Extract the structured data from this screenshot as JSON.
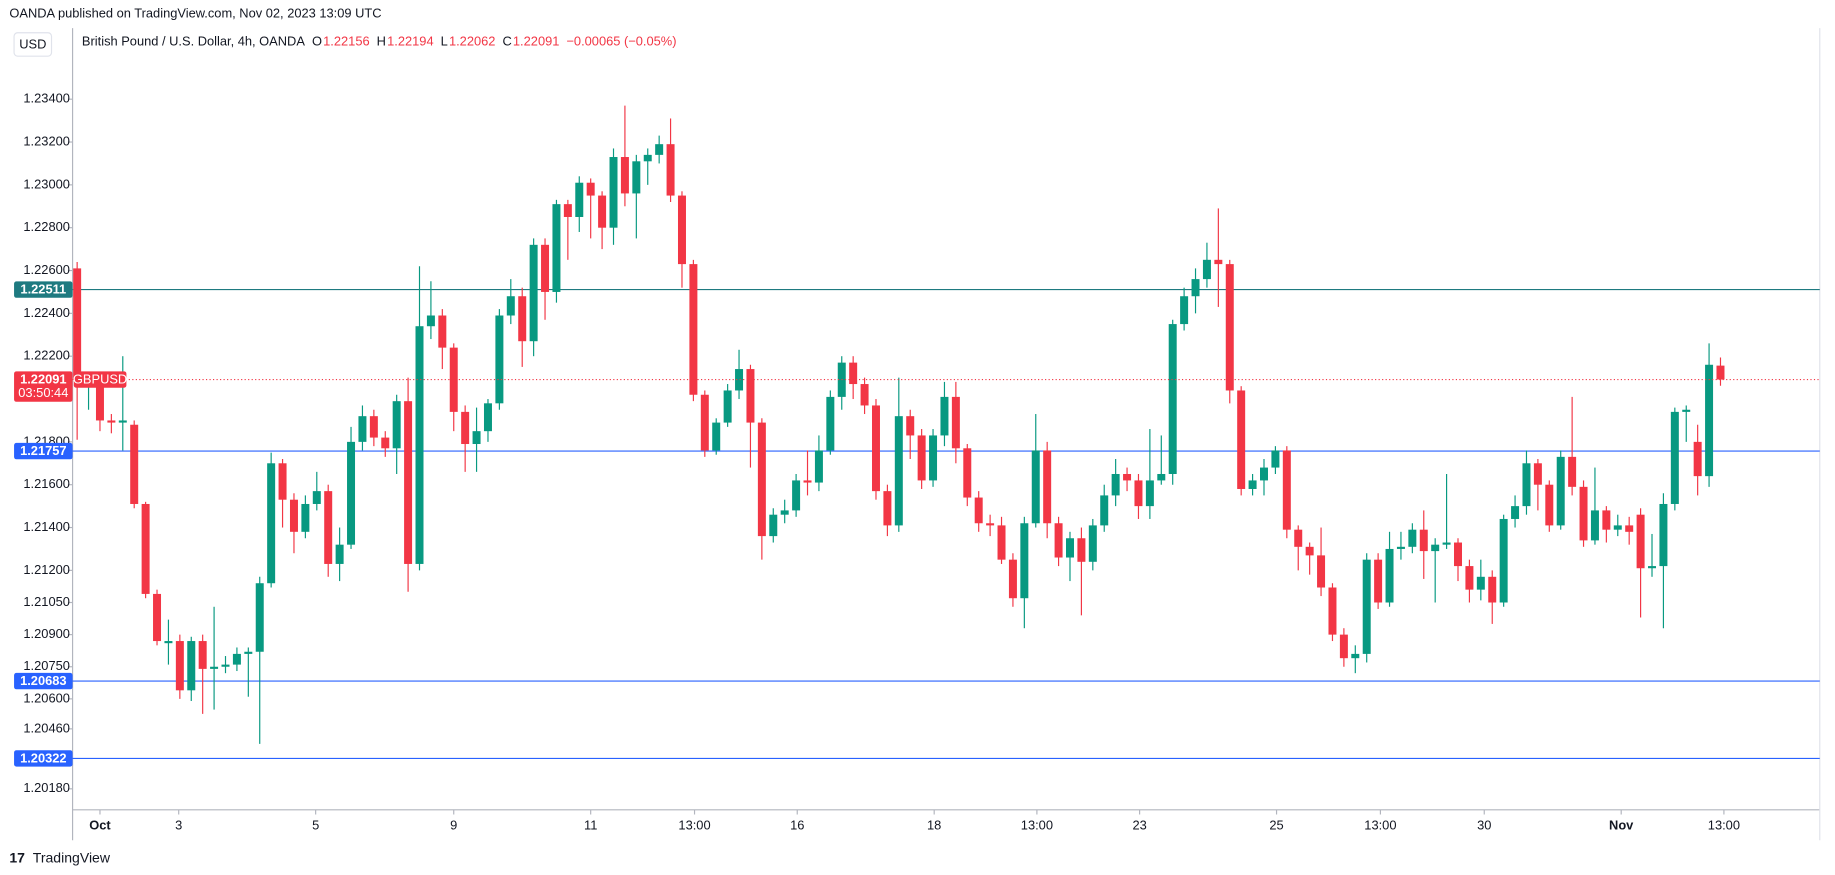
{
  "header": {
    "published": "OANDA published on TradingView.com, Nov 02, 2023 13:09 UTC",
    "currency": "USD",
    "footer": "TradingView"
  },
  "chart_data": {
    "type": "candlestick",
    "title": "British Pound / U.S. Dollar, 4h, OANDA",
    "symbol": "GBPUSD",
    "countdown": "03:50:44",
    "ohlc_letters": [
      "O",
      "H",
      "L",
      "C"
    ],
    "change_label": "−0.00065 (−0.05%)",
    "up_color": "#089981",
    "down_color": "#f23645",
    "ylim": [
      1.20082,
      1.23732
    ],
    "xlim": [
      -0.4,
      152.7
    ],
    "grid": false,
    "yticks": [
      {
        "value": 1.234,
        "label": "1.23400"
      },
      {
        "value": 1.232,
        "label": "1.23200"
      },
      {
        "value": 1.23,
        "label": "1.23000"
      },
      {
        "value": 1.228,
        "label": "1.22800"
      },
      {
        "value": 1.226,
        "label": "1.22600"
      },
      {
        "value": 1.224,
        "label": "1.22400"
      },
      {
        "value": 1.222,
        "label": "1.22200"
      },
      {
        "value": 1.218,
        "label": "1.21800"
      },
      {
        "value": 1.216,
        "label": "1.21600"
      },
      {
        "value": 1.214,
        "label": "1.21400"
      },
      {
        "value": 1.212,
        "label": "1.21200"
      },
      {
        "value": 1.2105,
        "label": "1.21050"
      },
      {
        "value": 1.209,
        "label": "1.20900"
      },
      {
        "value": 1.2075,
        "label": "1.20750"
      },
      {
        "value": 1.206,
        "label": "1.20600"
      },
      {
        "value": 1.2046,
        "label": "1.20460"
      },
      {
        "value": 1.2018,
        "label": "1.20180"
      }
    ],
    "xticks": [
      {
        "value": 2,
        "label": "Oct"
      },
      {
        "value": 8.9,
        "label": "3"
      },
      {
        "value": 20.9,
        "label": "5"
      },
      {
        "value": 33,
        "label": "9"
      },
      {
        "value": 45,
        "label": "11"
      },
      {
        "value": 54.1,
        "label": "13:00"
      },
      {
        "value": 63.1,
        "label": "16"
      },
      {
        "value": 75.1,
        "label": "18"
      },
      {
        "value": 84.1,
        "label": "13:00"
      },
      {
        "value": 93.1,
        "label": "23"
      },
      {
        "value": 105.1,
        "label": "25"
      },
      {
        "value": 114.2,
        "label": "13:00"
      },
      {
        "value": 123.3,
        "label": "30"
      },
      {
        "value": 135.3,
        "label": "Nov"
      },
      {
        "value": 144.3,
        "label": "13:00"
      }
    ],
    "levels": [
      {
        "value": 1.22511,
        "label": "1.22511",
        "color": "#1e7a80"
      },
      {
        "value": 1.21757,
        "label": "1.21757",
        "color": "#2962ff"
      },
      {
        "value": 1.20683,
        "label": "1.20683",
        "color": "#2962ff"
      },
      {
        "value": 1.20322,
        "label": "1.20322",
        "color": "#2962ff"
      }
    ],
    "ohlc": [
      [
        1.2261,
        1.2264,
        1.2181,
        1.2209
      ],
      [
        1.2206,
        1.2212,
        1.2195,
        1.2209
      ],
      [
        1.2206,
        1.221,
        1.2185,
        1.219
      ],
      [
        1.219,
        1.2193,
        1.2184,
        1.2189
      ],
      [
        1.2189,
        1.222,
        1.2176,
        1.219
      ],
      [
        1.2188,
        1.219,
        1.2149,
        1.2151
      ],
      [
        1.2151,
        1.2152,
        1.2107,
        1.2109
      ],
      [
        1.2109,
        1.2111,
        1.2085,
        1.2087
      ],
      [
        1.2086,
        1.2097,
        1.2076,
        1.2087
      ],
      [
        1.2087,
        1.209,
        1.206,
        1.2064
      ],
      [
        1.2064,
        1.2089,
        1.2059,
        1.2087
      ],
      [
        1.2087,
        1.209,
        1.2053,
        1.2074
      ],
      [
        1.2074,
        1.2103,
        1.2055,
        1.2075
      ],
      [
        1.2075,
        1.208,
        1.2072,
        1.2076
      ],
      [
        1.2076,
        1.2084,
        1.2073,
        1.2081
      ],
      [
        1.2081,
        1.2084,
        1.2061,
        1.2082
      ],
      [
        1.2082,
        1.2117,
        1.2039,
        1.2114
      ],
      [
        1.2114,
        1.2175,
        1.2112,
        1.217
      ],
      [
        1.217,
        1.2172,
        1.214,
        1.2153
      ],
      [
        1.2153,
        1.2156,
        1.2128,
        1.2138
      ],
      [
        1.2138,
        1.2155,
        1.2135,
        1.2151
      ],
      [
        1.2151,
        1.2166,
        1.2148,
        1.2157
      ],
      [
        1.2157,
        1.216,
        1.2117,
        1.2123
      ],
      [
        1.2123,
        1.214,
        1.2115,
        1.2132
      ],
      [
        1.2132,
        1.2187,
        1.213,
        1.218
      ],
      [
        1.218,
        1.2197,
        1.2176,
        1.2192
      ],
      [
        1.2192,
        1.2195,
        1.2178,
        1.2182
      ],
      [
        1.2182,
        1.2185,
        1.2173,
        1.2177
      ],
      [
        1.2177,
        1.2202,
        1.2165,
        1.2199
      ],
      [
        1.2199,
        1.221,
        1.211,
        1.2123
      ],
      [
        1.2123,
        1.2262,
        1.212,
        1.2234
      ],
      [
        1.2234,
        1.2255,
        1.2228,
        1.2239
      ],
      [
        1.2239,
        1.2242,
        1.2214,
        1.2224
      ],
      [
        1.2224,
        1.2226,
        1.2185,
        1.2194
      ],
      [
        1.2194,
        1.2197,
        1.2166,
        1.2179
      ],
      [
        1.2179,
        1.2196,
        1.2166,
        1.2185
      ],
      [
        1.2185,
        1.22,
        1.218,
        1.2198
      ],
      [
        1.2198,
        1.2242,
        1.2195,
        1.2239
      ],
      [
        1.2239,
        1.2256,
        1.2235,
        1.2248
      ],
      [
        1.2248,
        1.2252,
        1.2215,
        1.2227
      ],
      [
        1.2227,
        1.2275,
        1.222,
        1.2272
      ],
      [
        1.2272,
        1.2275,
        1.2237,
        1.225
      ],
      [
        1.225,
        1.2293,
        1.2245,
        1.2291
      ],
      [
        1.2291,
        1.2293,
        1.2265,
        1.2285
      ],
      [
        1.2285,
        1.2304,
        1.2278,
        1.2301
      ],
      [
        1.2301,
        1.2303,
        1.2275,
        1.2295
      ],
      [
        1.2295,
        1.2297,
        1.227,
        1.228
      ],
      [
        1.228,
        1.2317,
        1.2272,
        1.2313
      ],
      [
        1.2313,
        1.2337,
        1.229,
        1.2296
      ],
      [
        1.2296,
        1.2314,
        1.2275,
        1.2311
      ],
      [
        1.2311,
        1.2317,
        1.23,
        1.2314
      ],
      [
        1.2314,
        1.2323,
        1.231,
        1.2319
      ],
      [
        1.2319,
        1.2331,
        1.2292,
        1.2295
      ],
      [
        1.2295,
        1.2297,
        1.2252,
        1.2263
      ],
      [
        1.2263,
        1.2265,
        1.2199,
        1.2202
      ],
      [
        1.2202,
        1.2204,
        1.2173,
        1.2176
      ],
      [
        1.2176,
        1.2191,
        1.2174,
        1.2189
      ],
      [
        1.2189,
        1.2207,
        1.2187,
        1.2204
      ],
      [
        1.2204,
        1.2223,
        1.22,
        1.2214
      ],
      [
        1.2214,
        1.2216,
        1.2168,
        1.2189
      ],
      [
        1.2189,
        1.2191,
        1.2125,
        1.2136
      ],
      [
        1.2136,
        1.2149,
        1.2133,
        1.2146
      ],
      [
        1.2146,
        1.2153,
        1.2142,
        1.2148
      ],
      [
        1.2148,
        1.2165,
        1.2145,
        1.2162
      ],
      [
        1.2162,
        1.2176,
        1.2155,
        1.2161
      ],
      [
        1.2161,
        1.2183,
        1.2157,
        1.2176
      ],
      [
        1.2176,
        1.2204,
        1.2174,
        1.2201
      ],
      [
        1.2201,
        1.222,
        1.2195,
        1.2217
      ],
      [
        1.2217,
        1.222,
        1.22,
        1.2207
      ],
      [
        1.2207,
        1.221,
        1.2193,
        1.2197
      ],
      [
        1.2197,
        1.22,
        1.2153,
        1.2157
      ],
      [
        1.2157,
        1.216,
        1.2136,
        1.2141
      ],
      [
        1.2141,
        1.221,
        1.2138,
        1.2192
      ],
      [
        1.2192,
        1.2195,
        1.2172,
        1.2183
      ],
      [
        1.2183,
        1.2186,
        1.2158,
        1.2162
      ],
      [
        1.2162,
        1.2186,
        1.2159,
        1.2183
      ],
      [
        1.2183,
        1.2208,
        1.2178,
        1.2201
      ],
      [
        1.2201,
        1.2208,
        1.217,
        1.2177
      ],
      [
        1.2177,
        1.2179,
        1.215,
        1.2154
      ],
      [
        1.2154,
        1.2157,
        1.2138,
        1.2142
      ],
      [
        1.2142,
        1.2146,
        1.2136,
        1.2141
      ],
      [
        1.2141,
        1.2145,
        1.2123,
        1.2125
      ],
      [
        1.2125,
        1.2128,
        1.2103,
        1.2107
      ],
      [
        1.2107,
        1.2145,
        1.2093,
        1.2142
      ],
      [
        1.2142,
        1.2193,
        1.214,
        1.2176
      ],
      [
        1.2176,
        1.218,
        1.2135,
        1.2142
      ],
      [
        1.2142,
        1.2145,
        1.2122,
        1.2126
      ],
      [
        1.2126,
        1.2138,
        1.2115,
        1.2135
      ],
      [
        1.2135,
        1.214,
        1.2099,
        1.2124
      ],
      [
        1.2124,
        1.2144,
        1.212,
        1.2141
      ],
      [
        1.2141,
        1.216,
        1.2138,
        1.2155
      ],
      [
        1.2155,
        1.2172,
        1.215,
        1.2165
      ],
      [
        1.2165,
        1.2168,
        1.2157,
        1.2162
      ],
      [
        1.2162,
        1.2165,
        1.2144,
        1.215
      ],
      [
        1.215,
        1.2186,
        1.2144,
        1.2162
      ],
      [
        1.2162,
        1.2183,
        1.216,
        1.2165
      ],
      [
        1.2165,
        1.2237,
        1.216,
        1.2235
      ],
      [
        1.2235,
        1.2252,
        1.2232,
        1.2248
      ],
      [
        1.2248,
        1.2261,
        1.224,
        1.2256
      ],
      [
        1.2256,
        1.2273,
        1.2252,
        1.2265
      ],
      [
        1.2265,
        1.2289,
        1.2243,
        1.2263
      ],
      [
        1.2263,
        1.2265,
        1.2198,
        1.2204
      ],
      [
        1.2204,
        1.2206,
        1.2155,
        1.2158
      ],
      [
        1.2158,
        1.2165,
        1.2155,
        1.2162
      ],
      [
        1.2162,
        1.2172,
        1.2155,
        1.2168
      ],
      [
        1.2168,
        1.2178,
        1.2165,
        1.2176
      ],
      [
        1.2176,
        1.2178,
        1.2135,
        1.2139
      ],
      [
        1.2139,
        1.2141,
        1.212,
        1.2131
      ],
      [
        1.2131,
        1.2133,
        1.2118,
        1.2127
      ],
      [
        1.2127,
        1.214,
        1.2108,
        1.2112
      ],
      [
        1.2112,
        1.2114,
        1.2087,
        1.209
      ],
      [
        1.209,
        1.2093,
        1.2075,
        1.2079
      ],
      [
        1.2079,
        1.2085,
        1.2072,
        1.2081
      ],
      [
        1.2081,
        1.2128,
        1.2077,
        1.2125
      ],
      [
        1.2125,
        1.2128,
        1.2102,
        1.2105
      ],
      [
        1.2105,
        1.2138,
        1.2103,
        1.213
      ],
      [
        1.213,
        1.2138,
        1.2125,
        1.2131
      ],
      [
        1.2131,
        1.2142,
        1.2128,
        1.2139
      ],
      [
        1.2139,
        1.2148,
        1.2116,
        1.2129
      ],
      [
        1.2129,
        1.2135,
        1.2105,
        1.2132
      ],
      [
        1.2132,
        1.2165,
        1.213,
        1.2133
      ],
      [
        1.2133,
        1.2135,
        1.2115,
        1.2122
      ],
      [
        1.2122,
        1.2125,
        1.2105,
        1.2111
      ],
      [
        1.2111,
        1.2125,
        1.2106,
        1.2117
      ],
      [
        1.2117,
        1.212,
        1.2095,
        1.2105
      ],
      [
        1.2105,
        1.2146,
        1.2103,
        1.2144
      ],
      [
        1.2144,
        1.2155,
        1.214,
        1.215
      ],
      [
        1.215,
        1.2176,
        1.2146,
        1.217
      ],
      [
        1.217,
        1.2172,
        1.2148,
        1.216
      ],
      [
        1.216,
        1.2162,
        1.2138,
        1.2141
      ],
      [
        1.2141,
        1.2176,
        1.2139,
        1.2173
      ],
      [
        1.2173,
        1.2201,
        1.2155,
        1.2159
      ],
      [
        1.2159,
        1.2162,
        1.2131,
        1.2134
      ],
      [
        1.2134,
        1.2168,
        1.2132,
        1.2148
      ],
      [
        1.2148,
        1.215,
        1.2133,
        1.2139
      ],
      [
        1.2139,
        1.2146,
        1.2136,
        1.2141
      ],
      [
        1.2141,
        1.2145,
        1.2132,
        1.2138
      ],
      [
        1.2146,
        1.2149,
        1.2098,
        1.2121
      ],
      [
        1.2121,
        1.2137,
        1.2117,
        1.2122
      ],
      [
        1.2122,
        1.2156,
        1.2093,
        1.2151
      ],
      [
        1.2151,
        1.2196,
        1.2148,
        1.2194
      ],
      [
        1.2194,
        1.2197,
        1.218,
        1.2195
      ],
      [
        1.218,
        1.2188,
        1.2155,
        1.2164
      ],
      [
        1.2164,
        1.2226,
        1.2159,
        1.2216
      ],
      [
        1.22156,
        1.22194,
        1.22062,
        1.22091
      ]
    ]
  }
}
